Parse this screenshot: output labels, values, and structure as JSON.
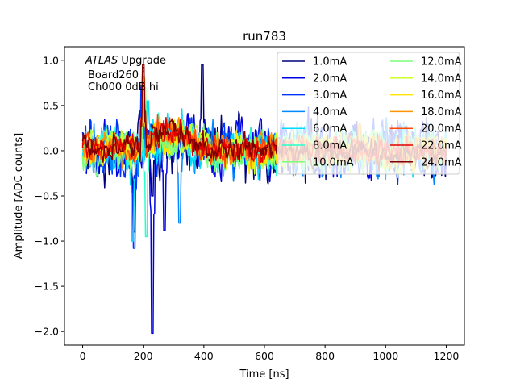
{
  "chart_data": {
    "type": "line",
    "title": "run783",
    "xlabel": "Time [ns]",
    "ylabel": "Amplitude [ADC counts]",
    "xlim": [
      -60,
      1260
    ],
    "ylim": [
      -2.15,
      1.15
    ],
    "xticks": [
      0,
      200,
      400,
      600,
      800,
      1000,
      1200
    ],
    "yticks": [
      -2.0,
      -1.5,
      -1.0,
      -0.5,
      0.0,
      0.5,
      1.0
    ],
    "xtick_labels": [
      "0",
      "200",
      "400",
      "600",
      "800",
      "1000",
      "1200"
    ],
    "ytick_labels": [
      "−2.0",
      "−1.5",
      "−1.0",
      "−0.5",
      "0.0",
      "0.5",
      "1.0"
    ],
    "grid": false,
    "legend_position": "top-right",
    "legend_columns": 2,
    "annotations": {
      "experiment": "ATLAS",
      "experiment_suffix": " Upgrade",
      "line2": "Board260",
      "line3": "Ch000 0dB hi"
    },
    "x": {
      "start": 0,
      "stop": 1200,
      "count": 481
    },
    "series": [
      {
        "name": "1.0mA",
        "color": "#00007f",
        "noise": 0.3,
        "features": [
          {
            "t": 170,
            "v": -0.9
          },
          {
            "t": 230,
            "v": -0.5
          },
          {
            "t": 395,
            "v": 0.95
          }
        ]
      },
      {
        "name": "2.0mA",
        "color": "#0000e3",
        "noise": 0.28,
        "features": [
          {
            "t": 230,
            "v": -2.02
          },
          {
            "t": 270,
            "v": -0.88
          }
        ]
      },
      {
        "name": "3.0mA",
        "color": "#0034ff",
        "noise": 0.26,
        "features": [
          {
            "t": 170,
            "v": -1.08
          },
          {
            "t": 195,
            "v": 0.7
          }
        ]
      },
      {
        "name": "4.0mA",
        "color": "#0088ff",
        "noise": 0.24,
        "features": [
          {
            "t": 320,
            "v": -0.8
          }
        ]
      },
      {
        "name": "6.0mA",
        "color": "#00dcfe",
        "noise": 0.22,
        "features": [
          {
            "t": 165,
            "v": -1.0
          },
          {
            "t": 215,
            "v": 0.55
          }
        ]
      },
      {
        "name": "8.0mA",
        "color": "#29ffcd",
        "noise": 0.2,
        "features": [
          {
            "t": 210,
            "v": -0.95
          }
        ]
      },
      {
        "name": "10.0mA",
        "color": "#7cff7a",
        "noise": 0.19,
        "features": [
          {
            "t": 200,
            "v": 0.65
          }
        ]
      },
      {
        "name": "12.0mA",
        "color": "#7cff79",
        "noise": 0.18,
        "features": [
          {
            "t": 205,
            "v": 0.7
          }
        ]
      },
      {
        "name": "14.0mA",
        "color": "#cdff29",
        "noise": 0.18,
        "features": [
          {
            "t": 200,
            "v": 0.75
          }
        ]
      },
      {
        "name": "16.0mA",
        "color": "#ffe500",
        "noise": 0.17,
        "features": [
          {
            "t": 202,
            "v": 0.8
          }
        ]
      },
      {
        "name": "18.0mA",
        "color": "#ff9400",
        "noise": 0.16,
        "features": [
          {
            "t": 200,
            "v": 0.82
          }
        ]
      },
      {
        "name": "20.0mA",
        "color": "#ff4800",
        "noise": 0.15,
        "features": [
          {
            "t": 200,
            "v": 0.88
          }
        ]
      },
      {
        "name": "22.0mA",
        "color": "#e30000",
        "noise": 0.14,
        "features": [
          {
            "t": 200,
            "v": 0.92
          }
        ]
      },
      {
        "name": "24.0mA",
        "color": "#7f0000",
        "noise": 0.13,
        "features": [
          {
            "t": 200,
            "v": 0.95
          }
        ]
      }
    ]
  }
}
